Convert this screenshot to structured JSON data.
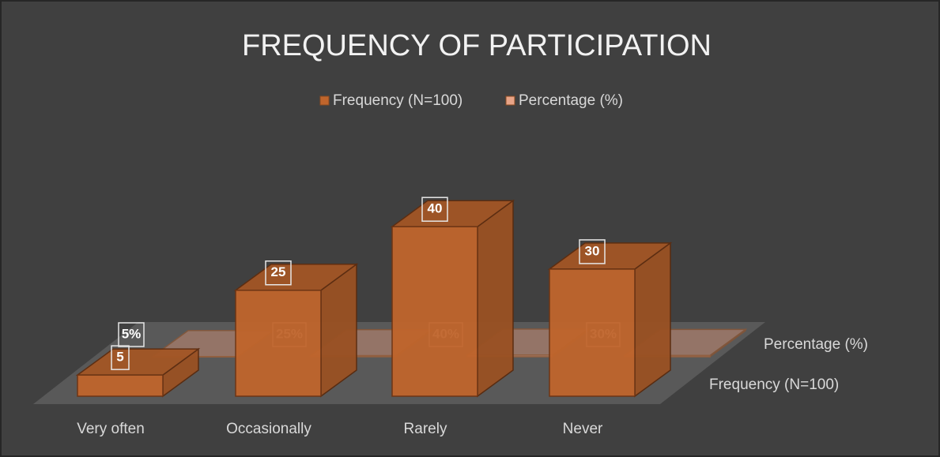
{
  "chart_data": {
    "type": "bar3d",
    "title": "FREQUENCY OF PARTICIPATION",
    "categories": [
      "Very often",
      "Occasionally",
      "Rarely",
      "Never"
    ],
    "series": [
      {
        "name": "Frequency (N=100)",
        "color": "#c0652c",
        "values": [
          5,
          25,
          40,
          30
        ]
      },
      {
        "name": "Percentage (%)",
        "color": "#e8a487",
        "values": [
          0.05,
          0.25,
          0.4,
          0.3
        ],
        "value_labels": [
          "5%",
          "25%",
          "40%",
          "30%"
        ]
      }
    ],
    "legend": "top"
  }
}
